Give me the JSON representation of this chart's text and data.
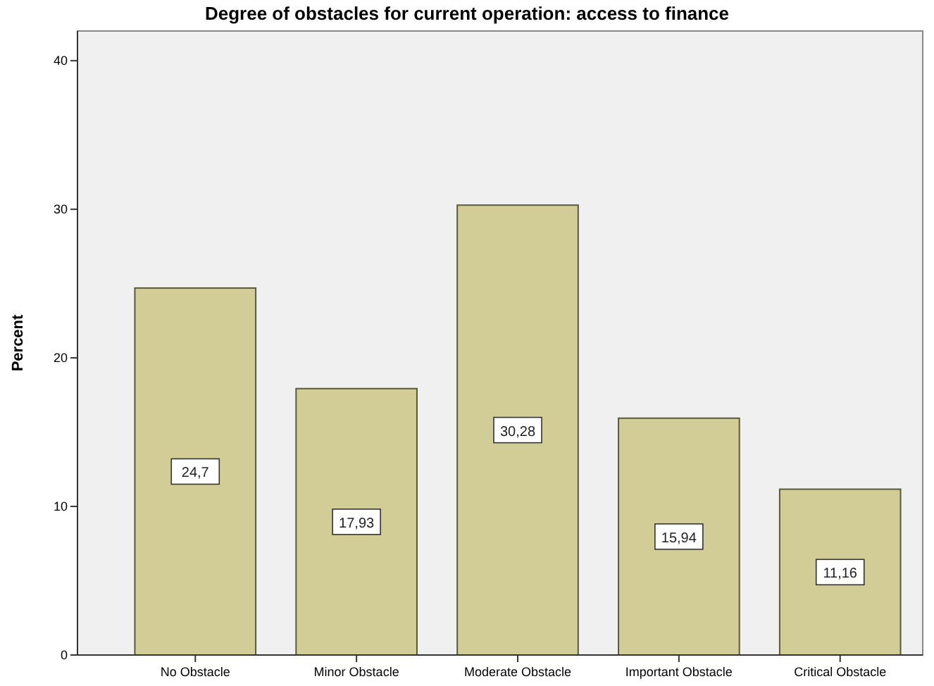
{
  "chart_data": {
    "type": "bar",
    "title": "Degree of obstacles for current operation: access to finance",
    "ylabel": "Percent",
    "categories": [
      "No Obstacle",
      "Minor Obstacle",
      "Moderate Obstacle",
      "Important Obstacle",
      "Critical Obstacle"
    ],
    "values": [
      24.7,
      17.93,
      30.28,
      15.94,
      11.16
    ],
    "value_labels": [
      "24,7",
      "17,93",
      "30,28",
      "15,94",
      "11,16"
    ],
    "color": "#d2cc96",
    "ylim": [
      0,
      42
    ],
    "yticks": [
      0,
      10,
      20,
      30,
      40
    ],
    "grid": false
  }
}
